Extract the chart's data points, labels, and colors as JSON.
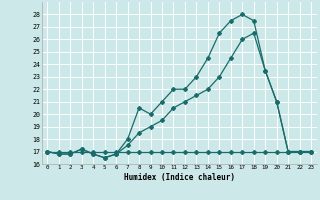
{
  "xlabel": "Humidex (Indice chaleur)",
  "bg_color": "#cce8e8",
  "grid_color": "#ffffff",
  "line_color": "#1a6b6b",
  "xlim": [
    -0.5,
    23.5
  ],
  "ylim": [
    16,
    29
  ],
  "yticks": [
    16,
    17,
    18,
    19,
    20,
    21,
    22,
    23,
    24,
    25,
    26,
    27,
    28
  ],
  "xticks": [
    0,
    1,
    2,
    3,
    4,
    5,
    6,
    7,
    8,
    9,
    10,
    11,
    12,
    13,
    14,
    15,
    16,
    17,
    18,
    19,
    20,
    21,
    22,
    23
  ],
  "line1_x": [
    0,
    1,
    2,
    3,
    4,
    5,
    6,
    7,
    8,
    9,
    10,
    11,
    12,
    13,
    14,
    15,
    16,
    17,
    18,
    19,
    20,
    21,
    22,
    23
  ],
  "line1_y": [
    17,
    17,
    17,
    17,
    17,
    17,
    17,
    17,
    17,
    17,
    17,
    17,
    17,
    17,
    17,
    17,
    17,
    17,
    17,
    17,
    17,
    17,
    17,
    17
  ],
  "line2_x": [
    0,
    1,
    2,
    3,
    4,
    5,
    6,
    7,
    8,
    9,
    10,
    11,
    12,
    13,
    14,
    15,
    16,
    17,
    18,
    19,
    20,
    21,
    22,
    23
  ],
  "line2_y": [
    17,
    16.8,
    16.8,
    17.2,
    16.8,
    16.5,
    16.8,
    17.5,
    18.5,
    19.0,
    19.5,
    20.5,
    21.0,
    21.5,
    22.0,
    23.0,
    24.5,
    26.0,
    26.5,
    23.5,
    21.0,
    17.0,
    17.0,
    17.0
  ],
  "line3_x": [
    0,
    1,
    2,
    3,
    4,
    5,
    6,
    7,
    8,
    9,
    10,
    11,
    12,
    13,
    14,
    15,
    16,
    17,
    18,
    19,
    20,
    21,
    22,
    23
  ],
  "line3_y": [
    17,
    16.8,
    16.8,
    17.2,
    16.8,
    16.5,
    16.8,
    18.0,
    20.5,
    20.0,
    21.0,
    22.0,
    22.0,
    23.0,
    24.5,
    26.5,
    27.5,
    28.0,
    27.5,
    23.5,
    21.0,
    17.0,
    17.0,
    17.0
  ]
}
